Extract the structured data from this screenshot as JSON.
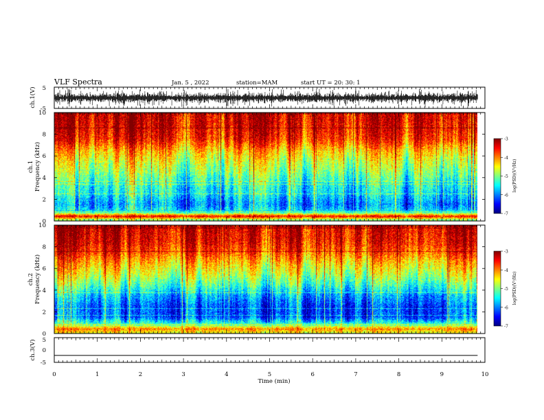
{
  "header": {
    "title": "VLF Spectra",
    "date": "Jan. 5 , 2022",
    "station": "station=MAM",
    "start": "start UT =  20: 30: 1"
  },
  "chart_data": [
    {
      "type": "line",
      "name": "ch1-waveform",
      "ylabel": "ch.1(V)",
      "ylim": [
        -5,
        5
      ],
      "ytick_labels": [
        "5",
        "-5"
      ],
      "xlim": [
        0,
        10
      ],
      "note_style": "dense black burst waveform filling band"
    },
    {
      "type": "heatmap",
      "name": "ch1-spectrogram",
      "ylabel_top": "ch.1",
      "ylabel": "Frequency (kHz)",
      "ylim": [
        0,
        10
      ],
      "ytick_labels": [
        "0",
        "2",
        "4",
        "6",
        "8",
        "10"
      ],
      "xlim": [
        0,
        9.83
      ],
      "colorbar": {
        "label": "log(PSD)(V²/Hz)",
        "range": [
          -7,
          -3
        ],
        "tick_labels": [
          "-3",
          "-4",
          "-5",
          "-6",
          "-7"
        ],
        "colormap": [
          "#800000",
          "#ff0000",
          "#ff8000",
          "#ffff00",
          "#80ff80",
          "#00ffff",
          "#0080ff",
          "#0000ff",
          "#000080"
        ]
      },
      "profile_logpsd_by_freq": {
        "freq_khz": [
          0,
          0.4,
          0.8,
          1.5,
          2.5,
          3.5,
          4.5,
          5.5,
          6.5,
          7.5,
          8.5,
          9.5,
          10
        ],
        "logpsd": [
          -5.3,
          -3.4,
          -5.5,
          -5.9,
          -5.5,
          -5.3,
          -4.9,
          -4.6,
          -4.2,
          -3.6,
          -3.4,
          -3.3,
          -3.3
        ]
      }
    },
    {
      "type": "heatmap",
      "name": "ch2-spectrogram",
      "ylabel_top": "ch.2",
      "ylabel": "Frequency (kHz)",
      "ylim": [
        0,
        10
      ],
      "ytick_labels": [
        "0",
        "2",
        "4",
        "6",
        "8",
        "10"
      ],
      "xlim": [
        0,
        9.83
      ],
      "colorbar": {
        "label": "log(PSD)(V²/Hz)",
        "range": [
          -7,
          -3
        ],
        "tick_labels": [
          "-3",
          "-4",
          "-5",
          "-6",
          "-7"
        ],
        "colormap": [
          "#800000",
          "#ff0000",
          "#ff8000",
          "#ffff00",
          "#80ff80",
          "#00ffff",
          "#0080ff",
          "#0000ff",
          "#000080"
        ]
      },
      "profile_logpsd_by_freq": {
        "freq_khz": [
          0,
          0.4,
          0.8,
          1.5,
          2.5,
          3.5,
          4.5,
          5.5,
          6.5,
          7.5,
          8.5,
          9.5,
          10
        ],
        "logpsd": [
          -4.6,
          -4.0,
          -5.2,
          -6.2,
          -6.2,
          -5.8,
          -5.2,
          -4.7,
          -4.3,
          -3.8,
          -3.5,
          -3.4,
          -3.4
        ]
      }
    },
    {
      "type": "line",
      "name": "ch3-waveform",
      "ylabel": "ch.3(V)",
      "ylim": [
        -5,
        5
      ],
      "ytick_labels": [
        "5",
        "0",
        "-5"
      ],
      "x": [
        0,
        9.83
      ],
      "y": [
        -2.2,
        -2.2
      ],
      "xlim": [
        0,
        10
      ],
      "xlabel": "Time (min)",
      "xtick_labels": [
        "0",
        "1",
        "2",
        "3",
        "4",
        "5",
        "6",
        "7",
        "8",
        "9",
        "10"
      ]
    }
  ]
}
